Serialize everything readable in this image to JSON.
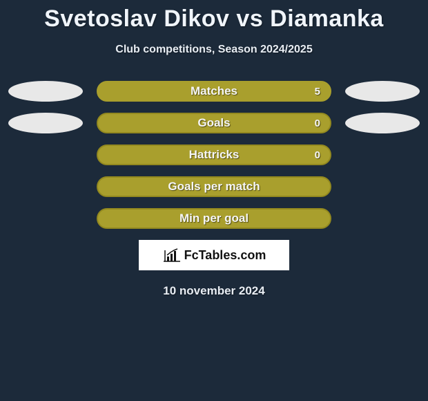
{
  "title": "Svetoslav Dikov vs Diamanka",
  "subtitle": "Club competitions, Season 2024/2025",
  "branding": "FcTables.com",
  "date": "10 november 2024",
  "background_color": "#1c2a3a",
  "title_color": "#f0f5fb",
  "title_fontsize": 34,
  "subtitle_fontsize": 16,
  "pill_width": 340,
  "pill_height": 30,
  "pill_label_fontsize": 17,
  "pill_value_fontsize": 15,
  "ellipse_width": 108,
  "ellipse_height": 30,
  "ellipse_color": "#e8e8e8",
  "branding_bg": "#ffffff",
  "branding_text_color": "#111111",
  "rows": [
    {
      "label": "Matches",
      "value": "5",
      "fill": "#a99f2d",
      "border": "#a99f2d",
      "show_ellipses": true,
      "show_value": true
    },
    {
      "label": "Goals",
      "value": "0",
      "fill": "#a99f2d",
      "border": "#93891f",
      "show_ellipses": true,
      "show_value": true
    },
    {
      "label": "Hattricks",
      "value": "0",
      "fill": "#a99f2d",
      "border": "#93891f",
      "show_ellipses": false,
      "show_value": true
    },
    {
      "label": "Goals per match",
      "value": "",
      "fill": "#a99f2d",
      "border": "#93891f",
      "show_ellipses": false,
      "show_value": false
    },
    {
      "label": "Min per goal",
      "value": "",
      "fill": "#a99f2d",
      "border": "#93891f",
      "show_ellipses": false,
      "show_value": false
    }
  ]
}
